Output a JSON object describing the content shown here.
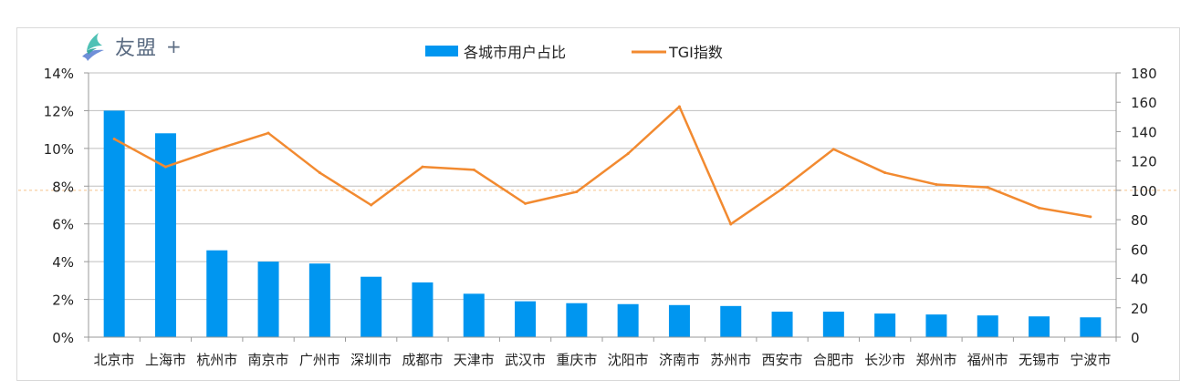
{
  "brand": {
    "name": "友盟",
    "plus": "+"
  },
  "colors": {
    "bar": "#0096f0",
    "line": "#f28a30",
    "grid": "#bfbfbf",
    "reference": "#f5c28a"
  },
  "chart_data": {
    "type": "bar",
    "categories": [
      "北京市",
      "上海市",
      "杭州市",
      "南京市",
      "广州市",
      "深圳市",
      "成都市",
      "天津市",
      "武汉市",
      "重庆市",
      "沈阳市",
      "济南市",
      "苏州市",
      "西安市",
      "合肥市",
      "长沙市",
      "郑州市",
      "福州市",
      "无锡市",
      "宁波市"
    ],
    "series": [
      {
        "name": "各城市用户占比",
        "type": "bar",
        "axis": "left",
        "values": [
          12.0,
          10.8,
          4.6,
          4.0,
          3.9,
          3.2,
          2.9,
          2.3,
          1.9,
          1.8,
          1.75,
          1.7,
          1.65,
          1.35,
          1.35,
          1.25,
          1.2,
          1.15,
          1.1,
          1.05
        ]
      },
      {
        "name": "TGI指数",
        "type": "line",
        "axis": "right",
        "values": [
          135,
          116,
          128,
          139,
          112,
          90,
          116,
          114,
          91,
          99,
          125,
          157,
          77,
          101,
          128,
          112,
          104,
          102,
          88,
          82
        ]
      }
    ],
    "y_left": {
      "min": 0,
      "max": 14,
      "step": 2,
      "ticks": [
        "0%",
        "2%",
        "4%",
        "6%",
        "8%",
        "10%",
        "12%",
        "14%"
      ]
    },
    "y_right": {
      "min": 0,
      "max": 180,
      "step": 20,
      "ticks": [
        "0",
        "20",
        "40",
        "60",
        "80",
        "100",
        "120",
        "140",
        "160",
        "180"
      ]
    },
    "reference_line": {
      "axis": "right",
      "value": 100
    },
    "legend": [
      "各城市用户占比",
      "TGI指数"
    ],
    "legend_position": "top-center",
    "grid": true
  }
}
